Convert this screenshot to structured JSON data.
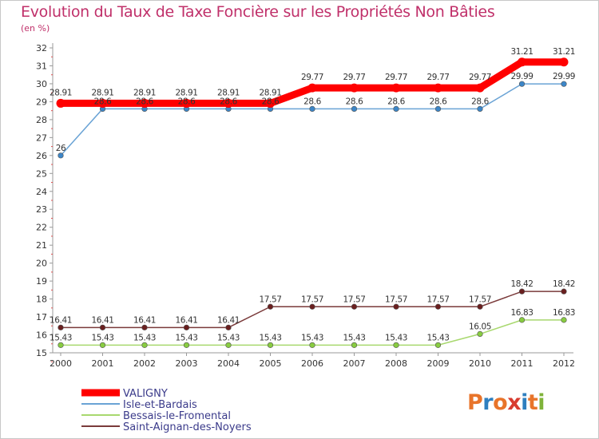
{
  "title": "Evolution du Taux de Taxe Foncière sur les Propriétés Non Bâties",
  "unit_label": "(en %)",
  "logo": {
    "text": "Proxiti",
    "letters": [
      "P",
      "r",
      "o",
      "x",
      "i",
      "t",
      "i"
    ],
    "colors": [
      "#e8742a",
      "#2f7fbf",
      "#e8742a",
      "#d83b2f",
      "#2f7fbf",
      "#e8742a",
      "#7fb33a"
    ]
  },
  "chart_data": {
    "type": "line",
    "title": "Evolution du Taux de Taxe Foncière sur les Propriétés Non Bâties",
    "ylabel": "(en %)",
    "xlabel": "",
    "x": [
      "2000",
      "2001",
      "2002",
      "2003",
      "2004",
      "2005",
      "2006",
      "2007",
      "2008",
      "2009",
      "2010",
      "2011",
      "2012"
    ],
    "ylim": [
      15,
      32
    ],
    "yticks": [
      15,
      16,
      17,
      18,
      19,
      20,
      21,
      22,
      23,
      24,
      25,
      26,
      27,
      28,
      29,
      30,
      31,
      32
    ],
    "grid": false,
    "legend_position": "bottom-left",
    "series": [
      {
        "name": "VALIGNY",
        "color": "#ff0000",
        "values": [
          28.91,
          28.91,
          28.91,
          28.91,
          28.91,
          28.91,
          29.77,
          29.77,
          29.77,
          29.77,
          29.77,
          31.21,
          31.21
        ],
        "labels": [
          "28.91",
          "28.91",
          "28.91",
          "28.91",
          "28.91",
          "28.91",
          "29.77",
          "29.77",
          "29.77",
          "29.77",
          "29.77",
          "31.21",
          "31.21"
        ]
      },
      {
        "name": "Isle-et-Bardais",
        "color": "#6aa3d5",
        "values": [
          26,
          28.6,
          28.6,
          28.6,
          28.6,
          28.6,
          28.6,
          28.6,
          28.6,
          28.6,
          28.6,
          29.99,
          29.99
        ],
        "labels": [
          "26",
          "28.6",
          "28.6",
          "28.6",
          "28.6",
          "28.6",
          "28.6",
          "28.6",
          "28.6",
          "28.6",
          "28.6",
          "29.99",
          "29.99"
        ]
      },
      {
        "name": "Bessais-le-Fromental",
        "color": "#a8d86e",
        "values": [
          15.43,
          15.43,
          15.43,
          15.43,
          15.43,
          15.43,
          15.43,
          15.43,
          15.43,
          15.43,
          16.05,
          16.83,
          16.83
        ],
        "labels": [
          "15.43",
          "15.43",
          "15.43",
          "15.43",
          "15.43",
          "15.43",
          "15.43",
          "15.43",
          "15.43",
          "15.43",
          "16.05",
          "16.83",
          "16.83"
        ]
      },
      {
        "name": "Saint-Aignan-des-Noyers",
        "color": "#7a3a3a",
        "values": [
          16.41,
          16.41,
          16.41,
          16.41,
          16.41,
          17.57,
          17.57,
          17.57,
          17.57,
          17.57,
          17.57,
          18.42,
          18.42
        ],
        "labels": [
          "16.41",
          "16.41",
          "16.41",
          "16.41",
          "16.41",
          "17.57",
          "17.57",
          "17.57",
          "17.57",
          "17.57",
          "17.57",
          "18.42",
          "18.42"
        ]
      }
    ]
  }
}
